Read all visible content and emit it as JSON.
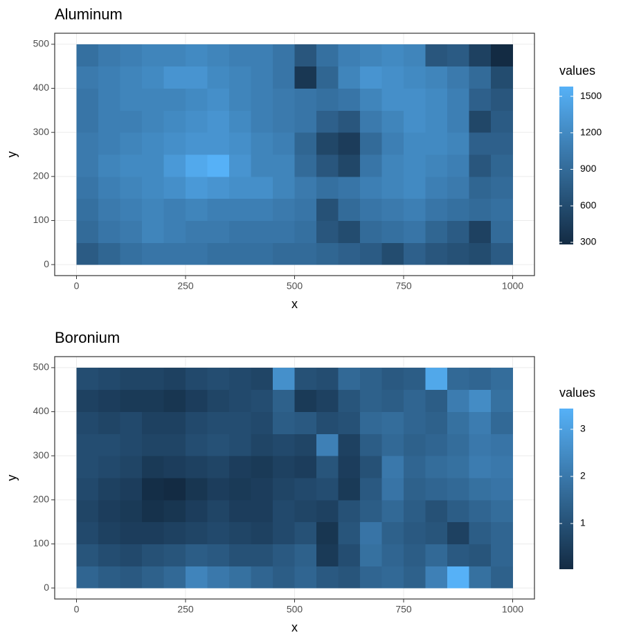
{
  "chart_data": [
    {
      "type": "heatmap",
      "title": "Aluminum",
      "x_label": "x",
      "y_label": "y",
      "legend_title": "values",
      "x": [
        25,
        75,
        125,
        175,
        225,
        275,
        325,
        375,
        425,
        475,
        525,
        575,
        625,
        675,
        725,
        775,
        825,
        875,
        925,
        975
      ],
      "y": [
        25,
        75,
        125,
        175,
        225,
        275,
        325,
        375,
        425,
        475
      ],
      "values": [
        [
          750,
          850,
          950,
          1000,
          1000,
          1000,
          950,
          950,
          950,
          900,
          900,
          850,
          800,
          750,
          600,
          800,
          700,
          650,
          600,
          750
        ],
        [
          900,
          1000,
          1050,
          1150,
          1100,
          1050,
          1050,
          1000,
          1000,
          1000,
          950,
          700,
          600,
          900,
          950,
          1000,
          850,
          750,
          500,
          900
        ],
        [
          950,
          1050,
          1100,
          1150,
          1100,
          1150,
          1100,
          1100,
          1100,
          1050,
          1000,
          650,
          900,
          1000,
          1050,
          1100,
          1000,
          950,
          900,
          950
        ],
        [
          1000,
          1100,
          1150,
          1200,
          1250,
          1350,
          1300,
          1250,
          1250,
          1150,
          1050,
          950,
          1000,
          1100,
          1150,
          1200,
          1100,
          1050,
          850,
          900
        ],
        [
          1050,
          1150,
          1200,
          1200,
          1350,
          1500,
          1580,
          1300,
          1150,
          1150,
          900,
          700,
          550,
          1000,
          1150,
          1200,
          1150,
          1100,
          700,
          850
        ],
        [
          1050,
          1100,
          1150,
          1200,
          1250,
          1300,
          1300,
          1250,
          1150,
          1100,
          850,
          550,
          450,
          900,
          1100,
          1200,
          1200,
          1150,
          800,
          800
        ],
        [
          1000,
          1100,
          1100,
          1150,
          1200,
          1250,
          1300,
          1200,
          1100,
          1050,
          1000,
          800,
          700,
          1050,
          1150,
          1250,
          1200,
          1100,
          550,
          750
        ],
        [
          1000,
          1100,
          1150,
          1150,
          1150,
          1200,
          1250,
          1150,
          1100,
          1050,
          1000,
          950,
          1000,
          1150,
          1250,
          1250,
          1200,
          1100,
          800,
          700
        ],
        [
          1050,
          1100,
          1150,
          1200,
          1300,
          1300,
          1200,
          1150,
          1100,
          1000,
          400,
          850,
          1150,
          1300,
          1250,
          1200,
          1150,
          1050,
          900,
          600
        ],
        [
          950,
          1050,
          1100,
          1150,
          1150,
          1200,
          1150,
          1100,
          1100,
          1000,
          700,
          950,
          1100,
          1150,
          1200,
          1150,
          700,
          750,
          500,
          283
        ]
      ],
      "xlim": [
        -50,
        1050
      ],
      "ylim": [
        -25,
        525
      ],
      "xticks": [
        0,
        250,
        500,
        750,
        1000
      ],
      "yticks": [
        0,
        100,
        200,
        300,
        400,
        500
      ],
      "clim": [
        283,
        1580
      ],
      "cticks": [
        300,
        600,
        900,
        1200,
        1500
      ],
      "colors": [
        "#132B43",
        "#56B1F7"
      ],
      "grid": true
    },
    {
      "type": "heatmap",
      "title": "Boronium",
      "x_label": "x",
      "y_label": "y",
      "legend_title": "values",
      "x": [
        25,
        75,
        125,
        175,
        225,
        275,
        325,
        375,
        425,
        475,
        525,
        575,
        625,
        675,
        725,
        775,
        825,
        875,
        925,
        975
      ],
      "y": [
        25,
        75,
        125,
        175,
        225,
        275,
        325,
        375,
        425,
        475
      ],
      "values": [
        [
          1.5,
          1.3,
          1.2,
          1.4,
          1.6,
          2.3,
          2.0,
          1.8,
          1.5,
          1.3,
          1.5,
          1.2,
          1.1,
          1.5,
          1.6,
          1.4,
          2.2,
          3.44,
          1.8,
          1.4
        ],
        [
          1.1,
          0.9,
          0.8,
          1.0,
          1.1,
          1.3,
          1.2,
          1.0,
          1.0,
          1.2,
          1.4,
          0.4,
          0.9,
          1.8,
          1.5,
          1.3,
          1.6,
          1.2,
          1.1,
          1.5
        ],
        [
          0.8,
          0.6,
          0.5,
          0.5,
          0.6,
          0.7,
          0.8,
          0.7,
          0.6,
          0.8,
          1.0,
          0.3,
          1.1,
          1.9,
          1.4,
          1.2,
          1.1,
          0.6,
          1.3,
          1.5
        ],
        [
          0.7,
          0.5,
          0.4,
          0.2,
          0.3,
          0.5,
          0.7,
          0.5,
          0.5,
          0.8,
          0.7,
          0.6,
          1.0,
          1.3,
          1.6,
          1.3,
          1.0,
          1.3,
          1.5,
          1.7
        ],
        [
          0.8,
          0.6,
          0.5,
          0.1,
          0.03,
          0.3,
          0.5,
          0.4,
          0.5,
          0.7,
          0.8,
          0.9,
          0.4,
          1.2,
          1.9,
          1.4,
          1.5,
          1.6,
          1.8,
          1.9
        ],
        [
          0.9,
          0.8,
          0.7,
          0.4,
          0.5,
          0.6,
          0.7,
          0.5,
          0.4,
          0.6,
          0.5,
          1.1,
          0.5,
          1.0,
          2.0,
          1.5,
          1.7,
          1.8,
          2.1,
          2.0
        ],
        [
          0.9,
          0.9,
          0.8,
          0.7,
          0.7,
          0.9,
          1.0,
          0.9,
          0.7,
          0.8,
          0.7,
          2.2,
          0.6,
          1.3,
          1.6,
          1.4,
          1.5,
          1.7,
          2.0,
          1.9
        ],
        [
          0.8,
          0.7,
          0.8,
          0.6,
          0.6,
          0.8,
          0.9,
          0.9,
          0.8,
          1.3,
          1.2,
          0.9,
          1.0,
          1.6,
          1.7,
          1.5,
          1.4,
          1.8,
          2.1,
          1.6
        ],
        [
          0.6,
          0.5,
          0.4,
          0.4,
          0.3,
          0.5,
          0.7,
          0.8,
          0.9,
          1.4,
          0.4,
          0.6,
          1.1,
          1.4,
          1.3,
          1.5,
          1.3,
          2.1,
          2.5,
          1.8
        ],
        [
          0.9,
          0.8,
          0.7,
          0.7,
          0.6,
          0.8,
          0.9,
          0.8,
          0.7,
          2.6,
          1.0,
          0.9,
          1.6,
          1.4,
          1.2,
          1.3,
          3.2,
          1.6,
          1.5,
          1.7
        ]
      ],
      "xlim": [
        -50,
        1050
      ],
      "ylim": [
        -25,
        525
      ],
      "xticks": [
        0,
        250,
        500,
        750,
        1000
      ],
      "yticks": [
        0,
        100,
        200,
        300,
        400,
        500
      ],
      "clim": [
        0.03,
        3.44
      ],
      "cticks": [
        1,
        2,
        3
      ],
      "colors": [
        "#132B43",
        "#56B1F7"
      ],
      "grid": true
    }
  ]
}
